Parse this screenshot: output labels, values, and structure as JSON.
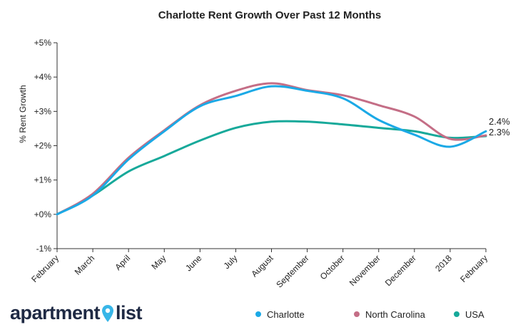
{
  "brand": {
    "name_left": "apartment",
    "name_right": "list",
    "pin_color": "#38b6e8"
  },
  "chart_data": {
    "type": "line",
    "title": "Charlotte Rent Growth Over Past 12 Months",
    "ylabel": "% Rent Growth",
    "xlabel": "",
    "categories": [
      "February",
      "March",
      "April",
      "May",
      "June",
      "July",
      "August",
      "September",
      "October",
      "November",
      "December",
      "2018",
      "February"
    ],
    "ylim": [
      -1,
      5
    ],
    "yticks": [
      "-1%",
      "+0%",
      "+1%",
      "+2%",
      "+3%",
      "+4%",
      "+5%"
    ],
    "grid": false,
    "legend_position": "bottom-right",
    "series": [
      {
        "name": "Charlotte",
        "color": "#1ba9e6",
        "values": [
          0.0,
          0.55,
          1.6,
          2.42,
          3.15,
          3.45,
          3.73,
          3.6,
          3.38,
          2.75,
          2.32,
          1.97,
          2.42
        ]
      },
      {
        "name": "North Carolina",
        "color": "#c46e86",
        "values": [
          0.0,
          0.6,
          1.65,
          2.45,
          3.18,
          3.6,
          3.82,
          3.62,
          3.47,
          3.18,
          2.85,
          2.2,
          2.3
        ]
      },
      {
        "name": "USA",
        "color": "#17a99a",
        "values": [
          0.0,
          0.55,
          1.25,
          1.7,
          2.15,
          2.52,
          2.7,
          2.7,
          2.62,
          2.52,
          2.42,
          2.23,
          2.28
        ]
      }
    ],
    "end_labels": [
      "2.4%",
      "2.3%"
    ]
  }
}
